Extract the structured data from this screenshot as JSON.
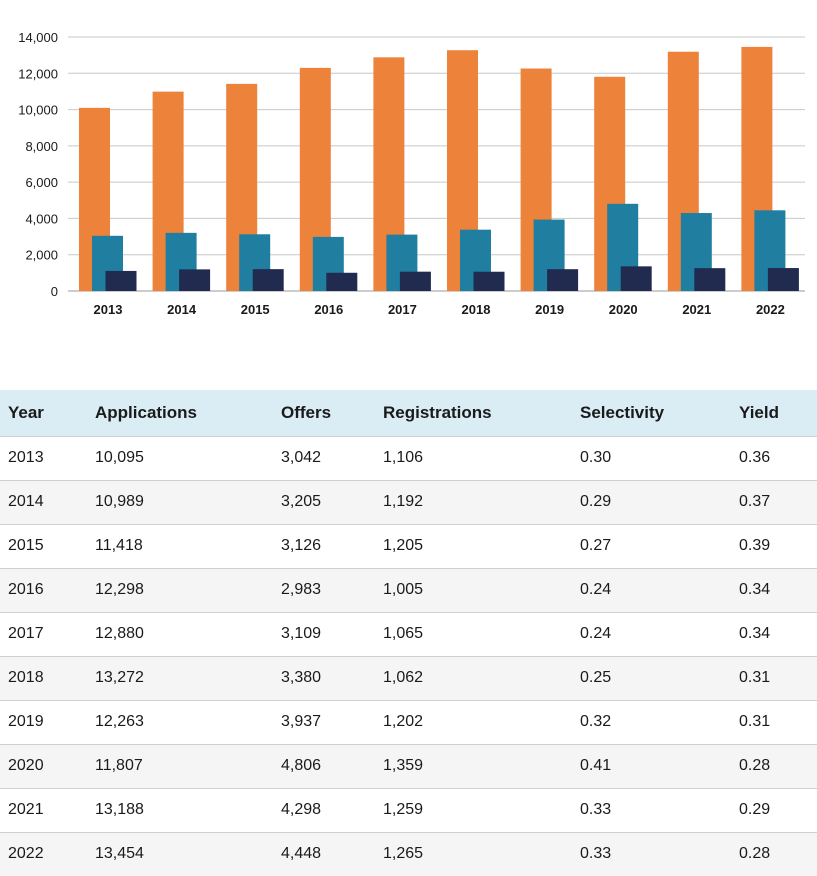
{
  "chart_data": {
    "type": "bar",
    "categories": [
      "2013",
      "2014",
      "2015",
      "2016",
      "2017",
      "2018",
      "2019",
      "2020",
      "2021",
      "2022"
    ],
    "series": [
      {
        "values": [
          10095,
          10989,
          11418,
          12298,
          12880,
          13272,
          12263,
          11807,
          13188,
          13454
        ],
        "color": "#ed823b"
      },
      {
        "values": [
          3042,
          3205,
          3126,
          2983,
          3109,
          3380,
          3937,
          4806,
          4298,
          4448
        ],
        "color": "#207fa1"
      },
      {
        "values": [
          1106,
          1192,
          1205,
          1005,
          1065,
          1062,
          1202,
          1359,
          1259,
          1265
        ],
        "color": "#212b4f"
      }
    ],
    "yticks": [
      "0",
      "2,000",
      "4,000",
      "6,000",
      "8,000",
      "10,000",
      "12,000",
      "14,000"
    ],
    "ylim": [
      0,
      14000
    ],
    "grid": true
  },
  "table": {
    "headers": [
      "Year",
      "Applications",
      "Offers",
      "Registrations",
      "Selectivity",
      "Yield"
    ],
    "rows": [
      [
        "2013",
        "10,095",
        "3,042",
        "1,106",
        "0.30",
        "0.36"
      ],
      [
        "2014",
        "10,989",
        "3,205",
        "1,192",
        "0.29",
        "0.37"
      ],
      [
        "2015",
        "11,418",
        "3,126",
        "1,205",
        "0.27",
        "0.39"
      ],
      [
        "2016",
        "12,298",
        "2,983",
        "1,005",
        "0.24",
        "0.34"
      ],
      [
        "2017",
        "12,880",
        "3,109",
        "1,065",
        "0.24",
        "0.34"
      ],
      [
        "2018",
        "13,272",
        "3,380",
        "1,062",
        "0.25",
        "0.31"
      ],
      [
        "2019",
        "12,263",
        "3,937",
        "1,202",
        "0.32",
        "0.31"
      ],
      [
        "2020",
        "11,807",
        "4,806",
        "1,359",
        "0.41",
        "0.28"
      ],
      [
        "2021",
        "13,188",
        "4,298",
        "1,259",
        "0.33",
        "0.29"
      ],
      [
        "2022",
        "13,454",
        "4,448",
        "1,265",
        "0.33",
        "0.28"
      ]
    ]
  }
}
